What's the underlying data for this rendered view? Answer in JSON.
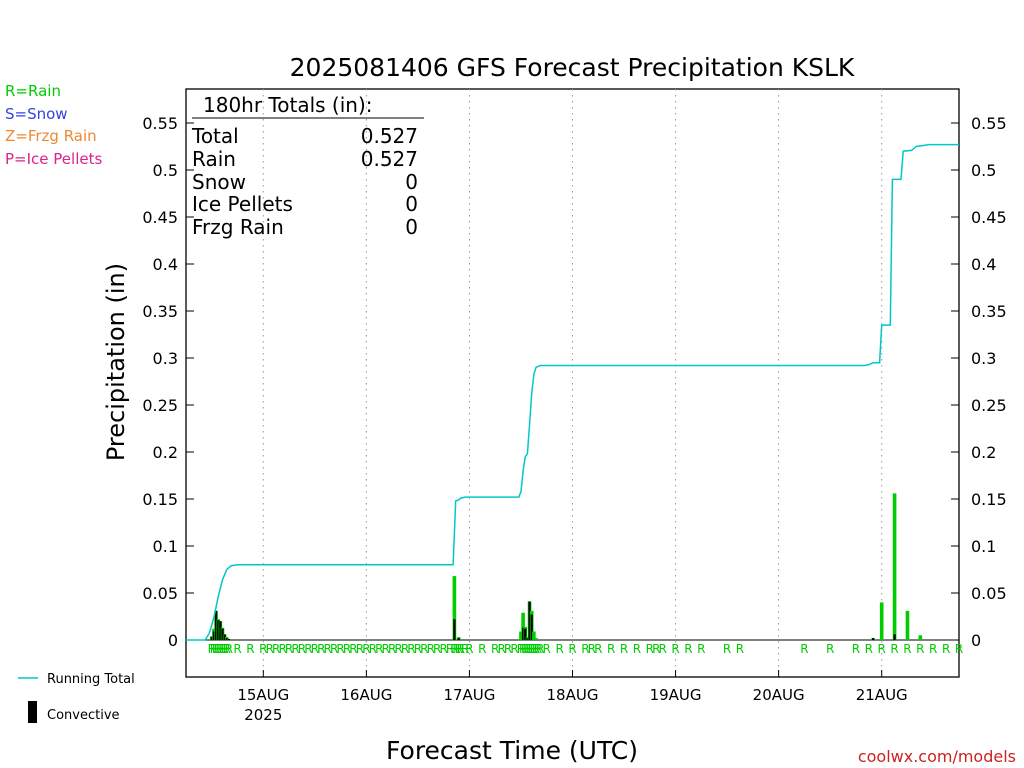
{
  "chart_data": {
    "type": "bar",
    "title": "2025081406 GFS Forecast Precipitation KSLK",
    "xlabel": "Forecast Time (UTC)",
    "ylabel": "Precipitation (in)",
    "ylim": [
      0,
      0.58
    ],
    "yticks": [
      0,
      0.05,
      0.1,
      0.15,
      0.2,
      0.25,
      0.3,
      0.35,
      0.4,
      0.45,
      0.5,
      0.55
    ],
    "ytick_labels": [
      "0",
      "0.05",
      "0.1",
      "0.15",
      "0.2",
      "0.25",
      "0.3",
      "0.35",
      "0.4",
      "0.45",
      "0.5",
      "0.55"
    ],
    "xlim_hours": [
      0,
      180
    ],
    "x_ticks": [
      {
        "hour": 18,
        "label": "15AUG",
        "sublabel": "2025"
      },
      {
        "hour": 42,
        "label": "16AUG",
        "sublabel": ""
      },
      {
        "hour": 66,
        "label": "17AUG",
        "sublabel": ""
      },
      {
        "hour": 90,
        "label": "18AUG",
        "sublabel": ""
      },
      {
        "hour": 114,
        "label": "19AUG",
        "sublabel": ""
      },
      {
        "hour": 138,
        "label": "20AUG",
        "sublabel": ""
      },
      {
        "hour": 162,
        "label": "21AUG",
        "sublabel": ""
      }
    ],
    "grid": "vertical dotted at day boundaries",
    "colors": {
      "rain": "#00cc00",
      "convective": "#000000",
      "running_total": "#00c8c8",
      "snow": "#3344dd",
      "frzg": "#ee8833",
      "ice": "#dd2288",
      "credit": "#cc2222"
    },
    "precip_type_legend": [
      {
        "text": "R=Rain",
        "color": "#00cc00"
      },
      {
        "text": "S=Snow",
        "color": "#3344dd"
      },
      {
        "text": "Z=Frzg Rain",
        "color": "#ee8833"
      },
      {
        "text": "P=Ice Pellets",
        "color": "#dd2288"
      }
    ],
    "series_legend": {
      "running_total": "Running Total",
      "convective": "Convective"
    },
    "totals_box": {
      "header": "180hr Totals (in):",
      "rows": [
        {
          "label": "Total",
          "value": "0.527"
        },
        {
          "label": "Rain",
          "value": "0.527"
        },
        {
          "label": "Snow",
          "value": "0"
        },
        {
          "label": "Ice Pellets",
          "value": "0"
        },
        {
          "label": "Frzg Rain",
          "value": "0"
        }
      ]
    },
    "bars": [
      {
        "hour": 6.0,
        "value": 0.004,
        "convective": 0.003
      },
      {
        "hour": 6.5,
        "value": 0.012,
        "convective": 0.009
      },
      {
        "hour": 7.0,
        "value": 0.031,
        "convective": 0.031
      },
      {
        "hour": 7.5,
        "value": 0.022,
        "convective": 0.021
      },
      {
        "hour": 8.0,
        "value": 0.02,
        "convective": 0.02
      },
      {
        "hour": 8.5,
        "value": 0.013,
        "convective": 0.012
      },
      {
        "hour": 9.0,
        "value": 0.006,
        "convective": 0.006
      },
      {
        "hour": 9.5,
        "value": 0.003,
        "convective": 0.002
      },
      {
        "hour": 10.0,
        "value": 0.001,
        "convective": 0.001
      },
      {
        "hour": 62.5,
        "value": 0.068,
        "convective": 0.022
      },
      {
        "hour": 63.5,
        "value": 0.003,
        "convective": 0.002
      },
      {
        "hour": 78.0,
        "value": 0.009,
        "convective": 0
      },
      {
        "hour": 78.5,
        "value": 0.029,
        "convective": 0.013
      },
      {
        "hour": 79.0,
        "value": 0.014,
        "convective": 0.012
      },
      {
        "hour": 79.5,
        "value": 0.003,
        "convective": 0.002
      },
      {
        "hour": 80.0,
        "value": 0.041,
        "convective": 0.041
      },
      {
        "hour": 80.5,
        "value": 0.031,
        "convective": 0.027
      },
      {
        "hour": 81.0,
        "value": 0.009,
        "convective": 0
      },
      {
        "hour": 81.5,
        "value": 0.002,
        "convective": 0
      },
      {
        "hour": 160.0,
        "value": 0.002,
        "convective": 0.002
      },
      {
        "hour": 162.0,
        "value": 0.04,
        "convective": 0
      },
      {
        "hour": 165.0,
        "value": 0.156,
        "convective": 0.006
      },
      {
        "hour": 168.0,
        "value": 0.031,
        "convective": 0
      },
      {
        "hour": 171.0,
        "value": 0.005,
        "convective": 0
      }
    ],
    "running_total": [
      [
        0,
        0
      ],
      [
        4.5,
        0
      ],
      [
        5.5,
        0.008
      ],
      [
        6.5,
        0.024
      ],
      [
        7.5,
        0.046
      ],
      [
        8.5,
        0.064
      ],
      [
        9.5,
        0.075
      ],
      [
        10.5,
        0.079
      ],
      [
        12,
        0.08
      ],
      [
        62.2,
        0.08
      ],
      [
        62.8,
        0.148
      ],
      [
        63.5,
        0.149
      ],
      [
        64,
        0.151
      ],
      [
        65,
        0.152
      ],
      [
        77.5,
        0.152
      ],
      [
        78,
        0.158
      ],
      [
        78.5,
        0.18
      ],
      [
        79,
        0.195
      ],
      [
        79.5,
        0.198
      ],
      [
        80,
        0.23
      ],
      [
        80.5,
        0.262
      ],
      [
        81,
        0.283
      ],
      [
        81.5,
        0.29
      ],
      [
        82.5,
        0.292
      ],
      [
        158,
        0.292
      ],
      [
        159,
        0.293
      ],
      [
        160,
        0.295
      ],
      [
        161.5,
        0.295
      ],
      [
        162,
        0.335
      ],
      [
        164,
        0.335
      ],
      [
        164.5,
        0.49
      ],
      [
        166.5,
        0.49
      ],
      [
        167,
        0.52
      ],
      [
        169,
        0.521
      ],
      [
        170,
        0.525
      ],
      [
        171.5,
        0.526
      ],
      [
        173,
        0.527
      ],
      [
        180,
        0.527
      ]
    ],
    "type_markers": {
      "symbol": "R",
      "hours": [
        6,
        6.5,
        7,
        7.5,
        8,
        8.5,
        9,
        9.5,
        10,
        12,
        15,
        18,
        19.5,
        21,
        22.5,
        24,
        25.5,
        27,
        28.5,
        30,
        31.5,
        33,
        34.5,
        36,
        37.5,
        39,
        40.5,
        42,
        43.5,
        45,
        46.5,
        48,
        49.5,
        51,
        52.5,
        54,
        55.5,
        57,
        58.5,
        60,
        61.5,
        62.5,
        63,
        63.5,
        64,
        65,
        66,
        69,
        72,
        73.5,
        75,
        76.5,
        78,
        78.5,
        79,
        79.5,
        80,
        80.5,
        81,
        81.5,
        82,
        82.5,
        84,
        87,
        90,
        93,
        94.5,
        96,
        99,
        102,
        105,
        108,
        109.5,
        111,
        114,
        117,
        120,
        126,
        129,
        144,
        150,
        156,
        159,
        162,
        165,
        168,
        171,
        174,
        177,
        180
      ]
    }
  },
  "credit": "coolwx.com/models"
}
